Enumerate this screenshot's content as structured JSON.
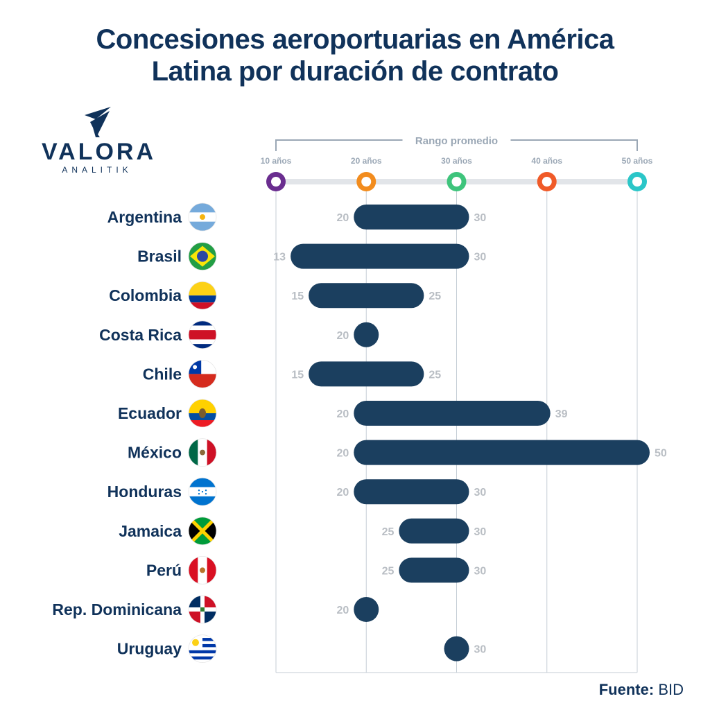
{
  "title": {
    "line1": "Concesiones aeroportuarias en América",
    "line2": "Latina por duración de contrato"
  },
  "logo": {
    "name": "VALORA",
    "sub": "ANALITIK"
  },
  "source": {
    "label": "Fuente:",
    "value": "BID"
  },
  "chart_data": {
    "type": "bar",
    "orientation": "horizontal-range",
    "range_label": "Rango promedio",
    "ticks": [
      {
        "value": 10,
        "label": "10 años",
        "color": "#6a2d8f"
      },
      {
        "value": 20,
        "label": "20 años",
        "color": "#f28c1e"
      },
      {
        "value": 30,
        "label": "30 años",
        "color": "#3ec47c"
      },
      {
        "value": 40,
        "label": "40 años",
        "color": "#f05a28"
      },
      {
        "value": 50,
        "label": "50 años",
        "color": "#2bc6c8"
      }
    ],
    "xlim": [
      10,
      50
    ],
    "grid": true,
    "bar_color": "#1b3f5f",
    "rows": [
      {
        "country": "Argentina",
        "min": 20,
        "max": 30,
        "flag": "argentina"
      },
      {
        "country": "Brasil",
        "min": 13,
        "max": 30,
        "flag": "brasil"
      },
      {
        "country": "Colombia",
        "min": 15,
        "max": 25,
        "flag": "colombia"
      },
      {
        "country": "Costa Rica",
        "min": 20,
        "max": 20,
        "flag": "costarica"
      },
      {
        "country": "Chile",
        "min": 15,
        "max": 25,
        "flag": "chile"
      },
      {
        "country": "Ecuador",
        "min": 20,
        "max": 39,
        "flag": "ecuador"
      },
      {
        "country": "México",
        "min": 20,
        "max": 50,
        "flag": "mexico"
      },
      {
        "country": "Honduras",
        "min": 20,
        "max": 30,
        "flag": "honduras"
      },
      {
        "country": "Jamaica",
        "min": 25,
        "max": 30,
        "flag": "jamaica"
      },
      {
        "country": "Perú",
        "min": 25,
        "max": 30,
        "flag": "peru"
      },
      {
        "country": "Rep. Dominicana",
        "min": 20,
        "max": 20,
        "flag": "repdominicana"
      },
      {
        "country": "Uruguay",
        "min": 30,
        "max": 30,
        "flag": "uruguay"
      }
    ]
  }
}
